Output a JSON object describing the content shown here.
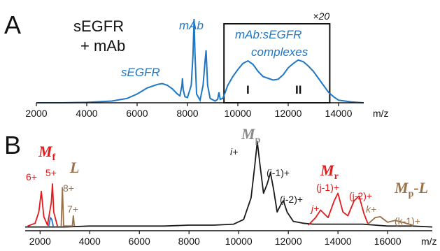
{
  "chart_data": [
    {
      "panel": "A",
      "type": "line",
      "sample_label": [
        "sEGFR",
        "+ mAb"
      ],
      "xlabel": "m/z",
      "x_ticks": [
        2000,
        4000,
        6000,
        8000,
        10000,
        12000,
        14000
      ],
      "xlim": [
        2000,
        15000
      ],
      "ylim": [
        0,
        1
      ],
      "color": "#1f77c4",
      "series": [
        {
          "x": [
            2000,
            3000,
            4000,
            5000,
            5600,
            6000,
            6400,
            6800,
            7000,
            7200,
            7400,
            7600,
            7700,
            7780,
            7800,
            7830,
            7900,
            8000,
            8150,
            8220,
            8260,
            8300,
            8360,
            8500,
            8620,
            8700,
            8740,
            8800,
            8900,
            9100,
            9200,
            9250,
            9300,
            9400,
            9500,
            9600,
            9800,
            10000,
            10200,
            10400,
            10600,
            10800,
            11000,
            11200,
            11400,
            11600,
            11800,
            12000,
            12200,
            12400,
            12600,
            12800,
            13000,
            13200,
            13400,
            13600,
            13800,
            14000,
            14500,
            15000
          ],
          "y": [
            0.0,
            0.0,
            0.005,
            0.02,
            0.05,
            0.1,
            0.17,
            0.21,
            0.22,
            0.2,
            0.16,
            0.1,
            0.08,
            0.2,
            0.28,
            0.15,
            0.07,
            0.06,
            0.2,
            0.55,
            0.96,
            0.55,
            0.1,
            0.03,
            0.2,
            0.48,
            0.6,
            0.2,
            0.05,
            0.02,
            0.04,
            0.12,
            0.04,
            0.05,
            0.12,
            0.2,
            0.3,
            0.38,
            0.45,
            0.48,
            0.44,
            0.36,
            0.3,
            0.28,
            0.26,
            0.27,
            0.32,
            0.4,
            0.45,
            0.49,
            0.47,
            0.42,
            0.36,
            0.28,
            0.2,
            0.12,
            0.07,
            0.03,
            0.01,
            0.0
          ]
        }
      ],
      "annotations": [
        {
          "text": "sEGFR",
          "x": 6300
        },
        {
          "text": "mAb",
          "x": 8300
        },
        {
          "text": "mAb:sEGFR",
          "x": 11600
        },
        {
          "text": "complexes",
          "x": 11600
        },
        {
          "text": "×20",
          "x": 13600
        },
        {
          "text": "I",
          "x": 10300
        },
        {
          "text": "II",
          "x": 12500
        }
      ],
      "zoom_box_x": [
        9450,
        13650
      ],
      "zoom_factor": "×20"
    },
    {
      "panel": "B",
      "type": "line",
      "xlabel": "m/z",
      "x_ticks": [
        2000,
        4000,
        6000,
        8000,
        10000,
        12000,
        14000,
        16000
      ],
      "xlim": [
        1400,
        17800
      ],
      "ylim": [
        0,
        1
      ],
      "series": [
        {
          "color": "#1a1a1a",
          "x": [
            1400,
            2000,
            3000,
            4000,
            5000,
            6000,
            7000,
            8000,
            9000,
            9800,
            10200,
            10500,
            10650,
            10750,
            10850,
            11000,
            11150,
            11280,
            11400,
            11550,
            11700,
            11800,
            11950,
            12200,
            12600,
            13000,
            13500,
            14000,
            14500,
            15000,
            15500,
            16000,
            16500,
            17000,
            17800
          ],
          "y": [
            0.04,
            0.04,
            0.04,
            0.05,
            0.05,
            0.05,
            0.05,
            0.06,
            0.06,
            0.07,
            0.12,
            0.35,
            0.7,
            0.95,
            0.72,
            0.4,
            0.5,
            0.62,
            0.45,
            0.2,
            0.28,
            0.32,
            0.2,
            0.1,
            0.08,
            0.07,
            0.07,
            0.07,
            0.07,
            0.07,
            0.06,
            0.05,
            0.05,
            0.05,
            0.04
          ]
        },
        {
          "color": "#e31a1c",
          "x": [
            1500,
            1800,
            1950,
            2050,
            2150,
            2300,
            2450,
            2500,
            2550,
            2700,
            12800,
            13100,
            13300,
            13600,
            13850,
            14000,
            14200,
            14400,
            14650,
            14850,
            15050,
            15200
          ],
          "y": [
            0.05,
            0.08,
            0.2,
            0.42,
            0.15,
            0.06,
            0.3,
            0.5,
            0.2,
            0.05,
            0.06,
            0.14,
            0.22,
            0.14,
            0.32,
            0.4,
            0.2,
            0.16,
            0.32,
            0.37,
            0.18,
            0.08
          ]
        },
        {
          "color": "#1f77c4",
          "x": [
            2350,
            2420,
            2470,
            2530
          ],
          "y": [
            0.05,
            0.14,
            0.12,
            0.05
          ]
        },
        {
          "color": "#9a7149",
          "x": [
            2850,
            2900,
            2950,
            3300,
            3340,
            3380,
            15200,
            15500,
            15700,
            16000,
            16300,
            16600,
            17000
          ],
          "y": [
            0.05,
            0.46,
            0.05,
            0.05,
            0.16,
            0.05,
            0.07,
            0.14,
            0.15,
            0.09,
            0.11,
            0.09,
            0.06
          ]
        }
      ],
      "labels": [
        {
          "text": "M",
          "sub": "f",
          "color": "#e31a1c"
        },
        {
          "text": "L",
          "color": "#9a7149"
        },
        {
          "text": "M",
          "sub": "p",
          "color": "#888888"
        },
        {
          "text": "M",
          "sub": "r",
          "color": "#e31a1c"
        },
        {
          "text": "M",
          "sub": "p",
          "suffix": "-L",
          "color": "#9a7149"
        }
      ],
      "charge_annotations": [
        {
          "text": "6+",
          "color": "#e31a1c"
        },
        {
          "text": "5+",
          "color": "#e31a1c"
        },
        {
          "text": "8+",
          "color": "#9a7149"
        },
        {
          "text": "7+",
          "color": "#9a7149"
        },
        {
          "text": "i+",
          "color": "#1a1a1a"
        },
        {
          "text": "(i-1)+",
          "color": "#1a1a1a"
        },
        {
          "text": "(i-2)+",
          "color": "#1a1a1a"
        },
        {
          "text": "j+",
          "color": "#e31a1c"
        },
        {
          "text": "(j-1)+",
          "color": "#e31a1c"
        },
        {
          "text": "(j-2)+",
          "color": "#e31a1c"
        },
        {
          "text": "k+",
          "color": "#9a7149"
        },
        {
          "text": "(k-1)+",
          "color": "#9a7149"
        }
      ]
    }
  ],
  "panels": {
    "a_letter": "A",
    "b_letter": "B"
  }
}
